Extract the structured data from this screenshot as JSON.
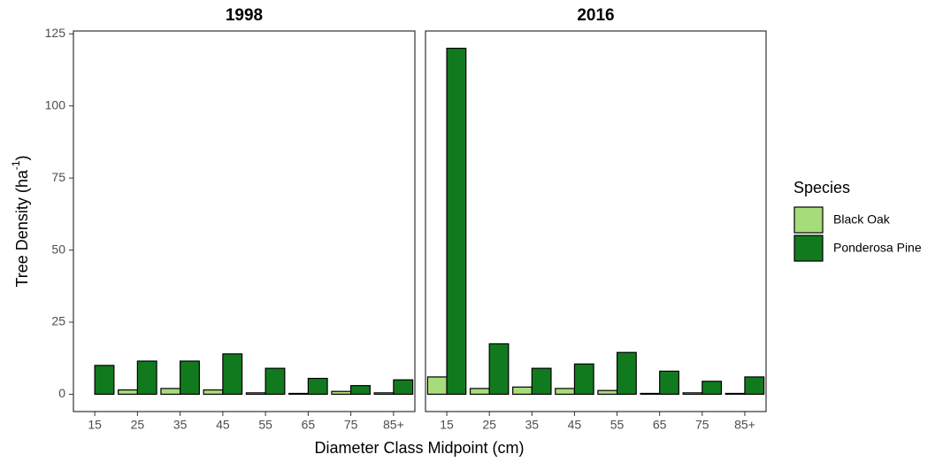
{
  "chart_data": [
    {
      "type": "bar",
      "title": "1998",
      "categories": [
        "15",
        "25",
        "35",
        "45",
        "55",
        "65",
        "75",
        "85+"
      ],
      "series": [
        {
          "name": "Black Oak",
          "color": "#a6dd7a",
          "values": [
            0,
            1.5,
            2,
            1.5,
            0.5,
            0.3,
            1,
            0.5
          ]
        },
        {
          "name": "Ponderosa Pine",
          "color": "#127a1e",
          "values": [
            10,
            11.5,
            11.5,
            14,
            9,
            5.5,
            3,
            5
          ]
        }
      ],
      "ylim": [
        -6,
        126
      ],
      "yticks": [
        0,
        25,
        50,
        75,
        100,
        125
      ]
    },
    {
      "type": "bar",
      "title": "2016",
      "categories": [
        "15",
        "25",
        "35",
        "45",
        "55",
        "65",
        "75",
        "85+"
      ],
      "series": [
        {
          "name": "Black Oak",
          "color": "#a6dd7a",
          "values": [
            6,
            2,
            2.5,
            2,
            1.3,
            0.3,
            0.5,
            0.3
          ]
        },
        {
          "name": "Ponderosa Pine",
          "color": "#127a1e",
          "values": [
            120,
            17.5,
            9,
            10.5,
            14.5,
            8,
            4.5,
            6
          ]
        }
      ],
      "ylim": [
        -6,
        126
      ],
      "yticks": [
        0,
        25,
        50,
        75,
        100,
        125
      ]
    }
  ],
  "xlabel": "Diameter Class Midpoint (cm)",
  "ylabel": {
    "text": "Tree Density (ha",
    "sup": "-1",
    "end": ")"
  },
  "legend": {
    "title": "Species"
  }
}
